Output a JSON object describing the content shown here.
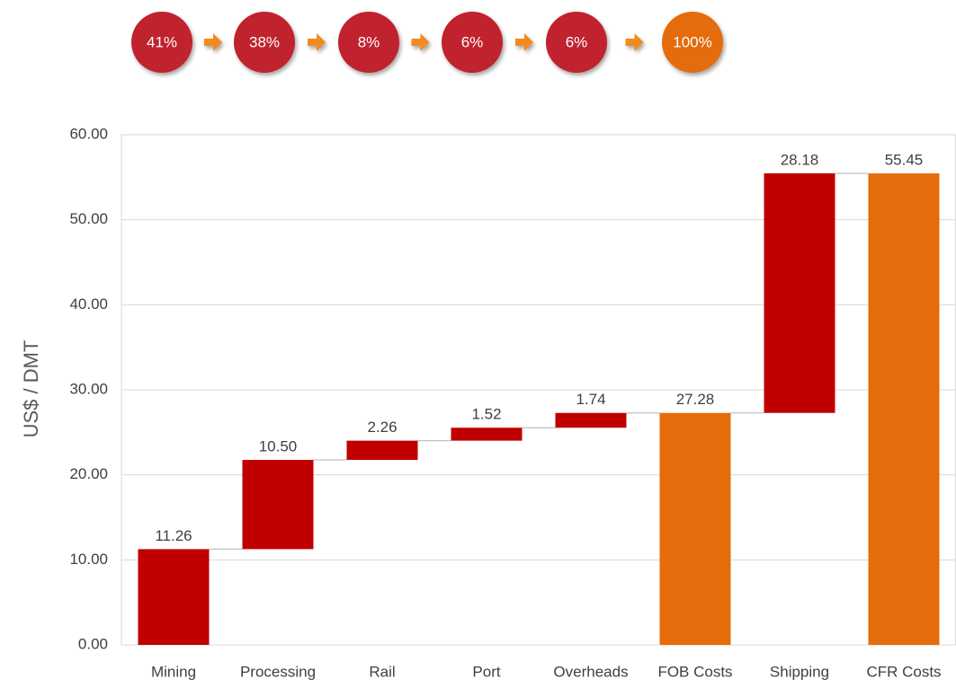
{
  "chart_data": {
    "type": "waterfall",
    "y_label": "US$ / DMT",
    "categories": [
      "Mining",
      "Processing",
      "Rail",
      "Port",
      "Overheads",
      "FOB Costs",
      "Shipping",
      "CFR Costs"
    ],
    "values": [
      11.26,
      10.5,
      2.26,
      1.52,
      1.74,
      27.28,
      28.18,
      55.45
    ],
    "value_labels": [
      "11.26",
      "10.50",
      "2.26",
      "1.52",
      "1.74",
      "27.28",
      "28.18",
      "55.45"
    ],
    "measure": [
      "relative",
      "relative",
      "relative",
      "relative",
      "relative",
      "total",
      "relative",
      "total"
    ],
    "color": "#c00000",
    "total_color": "#e46c0a",
    "ylim": [
      0,
      60
    ],
    "yticks": [
      {
        "value": 0,
        "label": "0.00"
      },
      {
        "value": 10,
        "label": "10.00"
      },
      {
        "value": 20,
        "label": "20.00"
      },
      {
        "value": 30,
        "label": "30.00"
      },
      {
        "value": 40,
        "label": "40.00"
      },
      {
        "value": 50,
        "label": "50.00"
      },
      {
        "value": 60,
        "label": "60.00"
      }
    ],
    "grid": true,
    "shares": {
      "values": [
        41,
        38,
        8,
        6,
        6,
        100
      ],
      "value_labels": [
        "41%",
        "38%",
        "8%",
        "6%",
        "6%",
        "100%"
      ],
      "colors": [
        "#c0232f",
        "#c0232f",
        "#c0232f",
        "#c0232f",
        "#c0232f",
        "#e46c0a"
      ],
      "arrow_color": "#f28a24"
    }
  }
}
